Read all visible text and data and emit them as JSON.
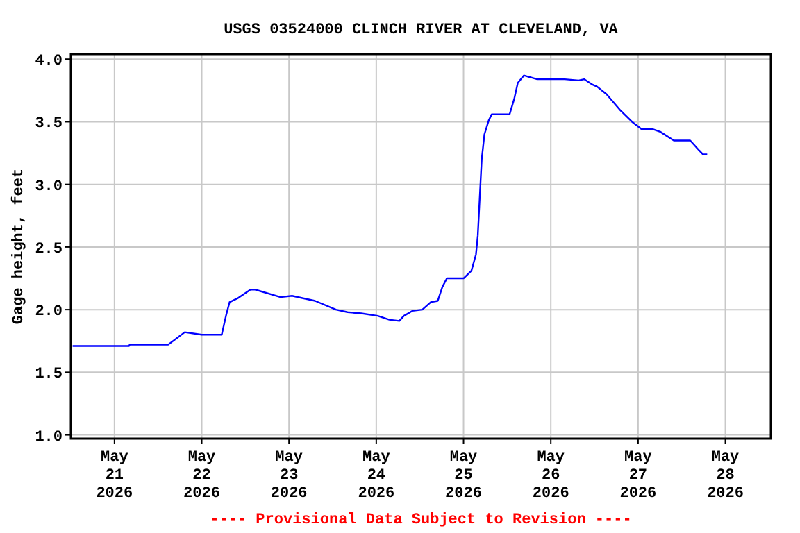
{
  "chart_data": {
    "type": "line",
    "title": "USGS 03524000 CLINCH RIVER AT CLEVELAND, VA",
    "ylabel": "Gage height, feet",
    "annotations": [
      "---- Provisional Data Subject to Revision ----"
    ],
    "x": [
      "2026-05-20T12:30",
      "2026-05-21T04:00",
      "2026-05-21T04:10",
      "2026-05-21T14:45",
      "2026-05-21T19:20",
      "2026-05-22T00:00",
      "2026-05-22T05:30",
      "2026-05-22T06:45",
      "2026-05-22T07:40",
      "2026-05-22T09:50",
      "2026-05-22T13:25",
      "2026-05-22T14:40",
      "2026-05-22T21:40",
      "2026-05-23T00:50",
      "2026-05-23T07:10",
      "2026-05-23T12:55",
      "2026-05-23T16:05",
      "2026-05-23T19:55",
      "2026-05-24T00:25",
      "2026-05-24T03:35",
      "2026-05-24T06:20",
      "2026-05-24T07:35",
      "2026-05-24T09:55",
      "2026-05-24T12:40",
      "2026-05-24T15:00",
      "2026-05-24T16:55",
      "2026-05-24T18:10",
      "2026-05-24T19:25",
      "2026-05-25T00:00",
      "2026-05-25T02:10",
      "2026-05-25T03:25",
      "2026-05-25T03:55",
      "2026-05-25T04:30",
      "2026-05-25T05:00",
      "2026-05-25T05:45",
      "2026-05-25T06:55",
      "2026-05-25T07:45",
      "2026-05-25T12:40",
      "2026-05-25T13:55",
      "2026-05-25T14:55",
      "2026-05-25T16:35",
      "2026-05-25T20:15",
      "2026-05-26T03:50",
      "2026-05-26T07:40",
      "2026-05-26T09:10",
      "2026-05-26T11:15",
      "2026-05-26T12:45",
      "2026-05-26T15:20",
      "2026-05-26T19:10",
      "2026-05-26T22:20",
      "2026-05-27T01:00",
      "2026-05-27T04:10",
      "2026-05-27T06:05",
      "2026-05-27T09:50",
      "2026-05-27T11:30",
      "2026-05-27T14:20",
      "2026-05-27T16:50",
      "2026-05-27T17:50",
      "2026-05-27T19:00"
    ],
    "series": [
      {
        "color": "#0000ff",
        "values": [
          1.71,
          1.71,
          1.72,
          1.72,
          1.82,
          1.8,
          1.8,
          1.96,
          2.06,
          2.09,
          2.16,
          2.16,
          2.1,
          2.11,
          2.07,
          2.0,
          1.98,
          1.97,
          1.95,
          1.92,
          1.91,
          1.95,
          1.99,
          2.0,
          2.06,
          2.07,
          2.18,
          2.25,
          2.25,
          2.31,
          2.44,
          2.59,
          2.92,
          3.2,
          3.4,
          3.51,
          3.56,
          3.56,
          3.68,
          3.81,
          3.87,
          3.84,
          3.84,
          3.83,
          3.84,
          3.8,
          3.78,
          3.72,
          3.59,
          3.5,
          3.44,
          3.44,
          3.42,
          3.35,
          3.35,
          3.35,
          3.27,
          3.24,
          3.24
        ]
      }
    ],
    "xlim": [
      "2026-05-20T12:00",
      "2026-05-28T12:30"
    ],
    "xticks": [
      {
        "value": "2026-05-21",
        "label": "May\n21\n2026"
      },
      {
        "value": "2026-05-22",
        "label": "May\n22\n2026"
      },
      {
        "value": "2026-05-23",
        "label": "May\n23\n2026"
      },
      {
        "value": "2026-05-24",
        "label": "May\n24\n2026"
      },
      {
        "value": "2026-05-25",
        "label": "May\n25\n2026"
      },
      {
        "value": "2026-05-26",
        "label": "May\n26\n2026"
      },
      {
        "value": "2026-05-27",
        "label": "May\n27\n2026"
      },
      {
        "value": "2026-05-28",
        "label": "May\n28\n2026"
      }
    ],
    "ylim": [
      0.97,
      4.04
    ],
    "yticks": [
      {
        "value": 1,
        "label": "1.0"
      },
      {
        "value": 1.5,
        "label": "1.5"
      },
      {
        "value": 2,
        "label": "2.0"
      },
      {
        "value": 2.5,
        "label": "2.5"
      },
      {
        "value": 3,
        "label": "3.0"
      },
      {
        "value": 3.5,
        "label": "3.5"
      },
      {
        "value": 4,
        "label": "4.0"
      }
    ],
    "grid": true,
    "line_style": "solid"
  }
}
